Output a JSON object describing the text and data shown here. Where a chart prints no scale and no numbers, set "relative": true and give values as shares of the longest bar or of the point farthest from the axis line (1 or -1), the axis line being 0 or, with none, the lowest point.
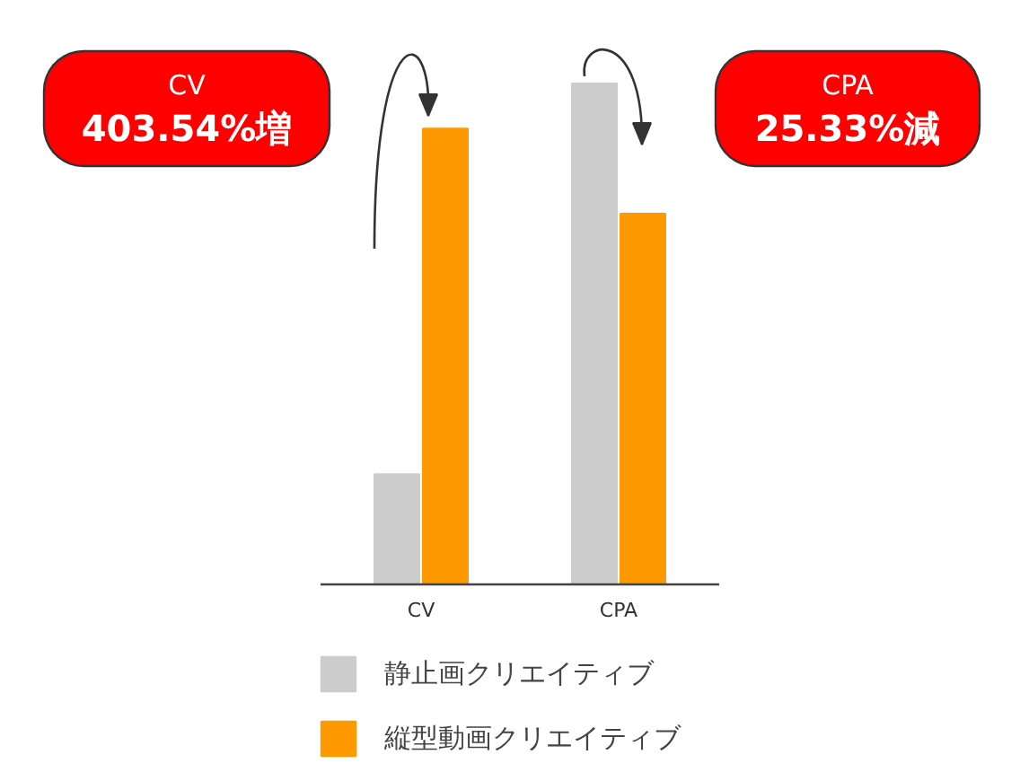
{
  "chart_data": {
    "type": "bar",
    "relative": true,
    "categories": [
      "CV",
      "CPA"
    ],
    "series": [
      {
        "name": "静止画クリエイティブ",
        "color": "#cccccc",
        "values": [
          0.22,
          1
        ]
      },
      {
        "name": "縦型動画クリエイティブ",
        "color": "#ff9900",
        "values": [
          0.91,
          0.74
        ]
      }
    ],
    "annotations": [
      "CV\n403.54%増",
      "CPA\n25.33%減"
    ],
    "legend": "bottom",
    "grid": false
  }
}
